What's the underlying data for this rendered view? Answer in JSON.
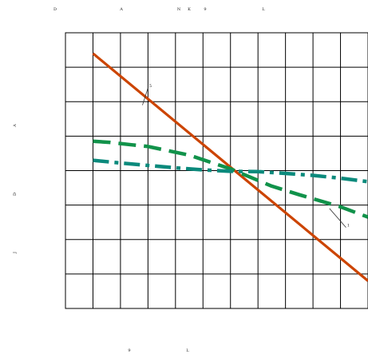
{
  "chart_data": {
    "type": "line",
    "grid": true,
    "xlim": [
      0,
      11
    ],
    "ylim": [
      0,
      8
    ],
    "top_labels": [
      "D",
      "A",
      "N",
      "K",
      "9",
      "L"
    ],
    "left_labels": [
      "A",
      "D",
      "J"
    ],
    "bottom_labels": [
      "9",
      "L"
    ],
    "annotations": [
      {
        "text": "5",
        "line": [
          [
            3.0,
            6.4
          ],
          [
            2.8,
            5.9
          ]
        ]
      },
      {
        "text": "1",
        "line": [
          [
            10.2,
            2.35
          ],
          [
            9.6,
            2.9
          ]
        ]
      }
    ],
    "series": [
      {
        "color": "#cc4400",
        "style": "solid",
        "x": [
          1,
          11
        ],
        "y": [
          7.4,
          0.8
        ]
      },
      {
        "color": "#11924a",
        "style": "dashed",
        "x": [
          1,
          1.6,
          2.4,
          3,
          4.5,
          6,
          7.5,
          8.5,
          10,
          11
        ],
        "y": [
          4.85,
          4.82,
          4.75,
          4.7,
          4.45,
          4.05,
          3.55,
          3.3,
          2.95,
          2.65
        ]
      },
      {
        "color": "#0b8a7c",
        "style": "dashdot",
        "x": [
          1,
          2,
          3,
          4,
          5,
          6,
          7,
          8,
          9,
          10,
          11
        ],
        "y": [
          4.3,
          4.22,
          4.15,
          4.08,
          4.02,
          3.98,
          3.97,
          3.92,
          3.86,
          3.78,
          3.68
        ]
      }
    ]
  }
}
